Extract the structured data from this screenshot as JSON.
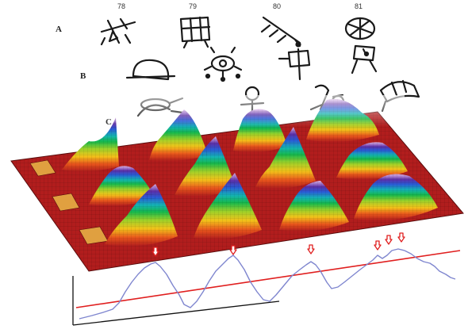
{
  "glyph_table": {
    "column_labels": [
      "78",
      "79",
      "80",
      "81"
    ],
    "row_labels": [
      "A",
      "B",
      "C"
    ]
  },
  "surface": {
    "colormap": [
      "#b11d1d",
      "#e8561c",
      "#f2c21a",
      "#9bd12a",
      "#16b84c",
      "#14b3b3",
      "#2a5bd6",
      "#5b2fa8",
      "#d9a6e0"
    ],
    "base_color": "#b11d1d"
  },
  "profile": {
    "line_color": "#7f86cf",
    "threshold_color": "#e01f1f",
    "marker_color": "#e01f1f",
    "peak_markers": 7
  }
}
